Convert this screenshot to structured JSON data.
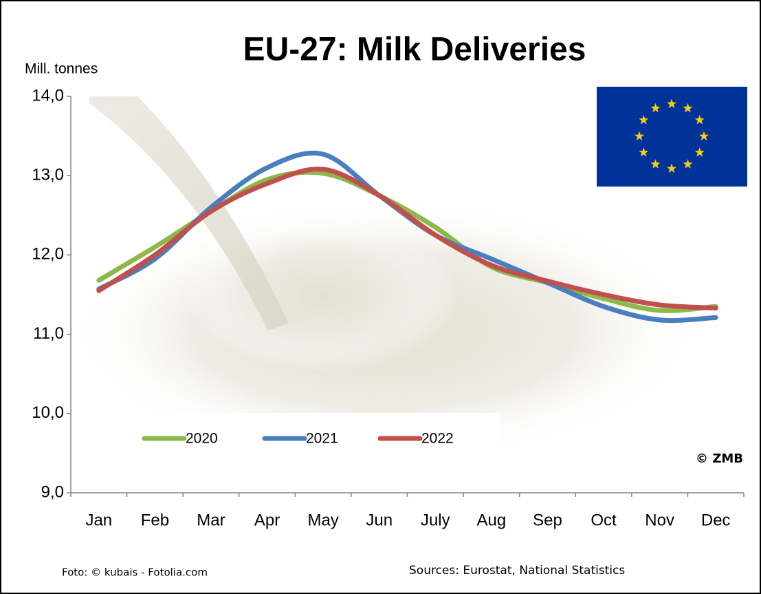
{
  "chart_data": {
    "type": "line",
    "title": "EU-27: Milk Deliveries",
    "y_label": "Mill. tonnes",
    "annotations": [
      "© ZMB",
      "Foto: © kubais - Fotolia.com",
      "Sources: Eurostat,  National Statistics"
    ],
    "categories": [
      "Jan",
      "Feb",
      "Mar",
      "Apr",
      "May",
      "Jun",
      "July",
      "Aug",
      "Sep",
      "Oct",
      "Nov",
      "Dec"
    ],
    "series": [
      {
        "name": "2020",
        "color": "#8db84a",
        "values": [
          11.68,
          12.1,
          12.55,
          12.95,
          13.03,
          12.75,
          12.35,
          11.85,
          11.65,
          11.45,
          11.3,
          11.35
        ]
      },
      {
        "name": "2021",
        "color": "#4a7ebf",
        "values": [
          11.57,
          11.95,
          12.6,
          13.1,
          13.27,
          12.75,
          12.25,
          11.95,
          11.65,
          11.35,
          11.18,
          11.21
        ]
      },
      {
        "name": "2022",
        "color": "#c0504d",
        "values": [
          11.55,
          12.0,
          12.55,
          12.9,
          13.08,
          12.75,
          12.25,
          11.87,
          11.67,
          11.5,
          11.37,
          11.33
        ]
      }
    ],
    "ylim": [
      9,
      14
    ],
    "yticks": [
      {
        "value": 9,
        "label": "9,0"
      },
      {
        "value": 10,
        "label": "10,0"
      },
      {
        "value": 11,
        "label": "11,0"
      },
      {
        "value": 12,
        "label": "12,0"
      },
      {
        "value": 13,
        "label": "13,0"
      },
      {
        "value": 14,
        "label": "14,0"
      }
    ],
    "grid": false
  }
}
